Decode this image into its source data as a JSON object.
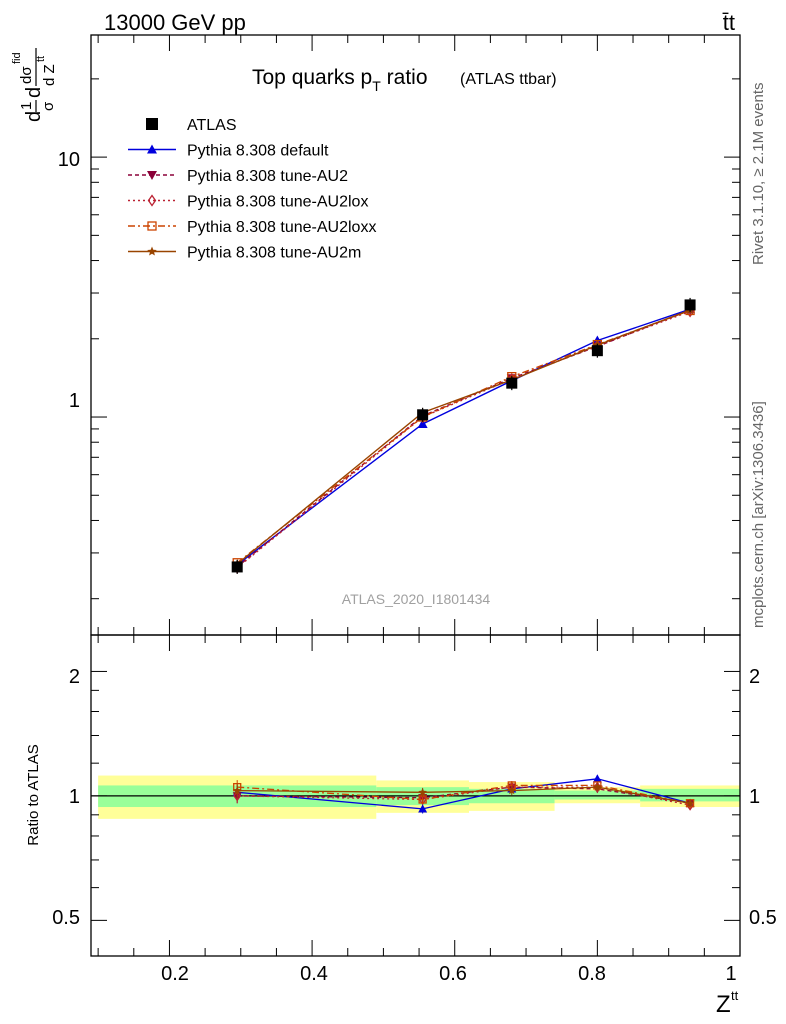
{
  "header": {
    "left": "13000 GeV pp",
    "right": "t̄t"
  },
  "title": "Top quarks p",
  "title_sub": "T",
  "title_rest": " ratio",
  "title_small": "(ATLAS ttbar)",
  "watermark": "ATLAS_2020_I1801434",
  "side_label_top": "Rivet 3.1.10, ≥ 2.1M events",
  "side_label_bottom": "mcplots.cern.ch [arXiv:1306.3436]",
  "ylabel_main": {
    "d1": "d",
    "frac1_num": "1",
    "frac1_den": "σ",
    "frac2_num": "dσ",
    "frac2_sup": "fid",
    "frac2_den": "d Z",
    "frac2_den_sup": "tt"
  },
  "ylabel_ratio": "Ratio to ATLAS",
  "xlabel": "Z",
  "xlabel_sup": "tt",
  "chart_data": {
    "type": "line",
    "x_label": "Z^tt",
    "x_range": [
      0.09,
      1.0
    ],
    "x_ticks": [
      0.2,
      0.4,
      0.6,
      0.8,
      1.0
    ],
    "x_tick_labels": [
      "0.2",
      "0.4",
      "0.6",
      "0.8",
      "1"
    ],
    "main": {
      "y_scale": "log",
      "y_range": [
        0.145,
        29.5
      ],
      "y_tick_labels": [
        "1",
        "10"
      ],
      "bins": [
        0.1,
        0.49,
        0.62,
        0.74,
        0.86,
        1.0
      ],
      "centers": [
        0.295,
        0.555,
        0.68,
        0.8,
        0.93
      ],
      "data": {
        "name": "ATLAS",
        "values": [
          0.265,
          1.02,
          1.35,
          1.8,
          2.7
        ]
      },
      "series": [
        {
          "name": "Pythia 8.308 default",
          "color": "#0000dd",
          "marker": "triangle-up",
          "dash": "",
          "values": [
            0.27,
            0.94,
            1.38,
            1.97,
            2.6
          ]
        },
        {
          "name": "Pythia 8.308 tune-AU2",
          "color": "#8b0038",
          "marker": "triangle-down",
          "dash": "4,3",
          "values": [
            0.265,
            1.01,
            1.41,
            1.87,
            2.58
          ]
        },
        {
          "name": "Pythia 8.308 tune-AU2lox",
          "color": "#bb2233",
          "marker": "diamond-open",
          "dash": "2,3",
          "values": [
            0.263,
            1.0,
            1.4,
            1.88,
            2.55
          ]
        },
        {
          "name": "Pythia 8.308 tune-AU2loxx",
          "color": "#cc4400",
          "marker": "square-open",
          "dash": "7,3,2,3",
          "values": [
            0.275,
            1.0,
            1.43,
            1.9,
            2.57
          ]
        },
        {
          "name": "Pythia 8.308 tune-AU2m",
          "color": "#994400",
          "marker": "star",
          "dash": "",
          "values": [
            0.272,
            1.04,
            1.39,
            1.89,
            2.58
          ]
        }
      ]
    },
    "ratio": {
      "y_scale": "log",
      "y_range": [
        0.41,
        2.45
      ],
      "y_ticks": [
        0.5,
        1,
        2
      ],
      "y_tick_labels": [
        "0.5",
        "1",
        "2"
      ],
      "band_green": [
        [
          0.94,
          1.06
        ],
        [
          0.95,
          1.05
        ],
        [
          0.96,
          1.04
        ],
        [
          0.98,
          1.03
        ],
        [
          0.97,
          1.04
        ]
      ],
      "band_yellow": [
        [
          0.88,
          1.12
        ],
        [
          0.91,
          1.09
        ],
        [
          0.92,
          1.08
        ],
        [
          0.96,
          1.05
        ],
        [
          0.94,
          1.06
        ]
      ],
      "series_ratio": [
        [
          1.02,
          0.93,
          1.04,
          1.1,
          0.96
        ],
        [
          1.0,
          0.99,
          1.05,
          1.04,
          0.96
        ],
        [
          1.0,
          0.98,
          1.05,
          1.05,
          0.95
        ],
        [
          1.05,
          0.98,
          1.06,
          1.06,
          0.96
        ],
        [
          1.03,
          1.02,
          1.03,
          1.05,
          0.96
        ]
      ],
      "series_err": [
        0.04,
        0.025,
        0.025,
        0.02,
        0.02
      ]
    }
  }
}
